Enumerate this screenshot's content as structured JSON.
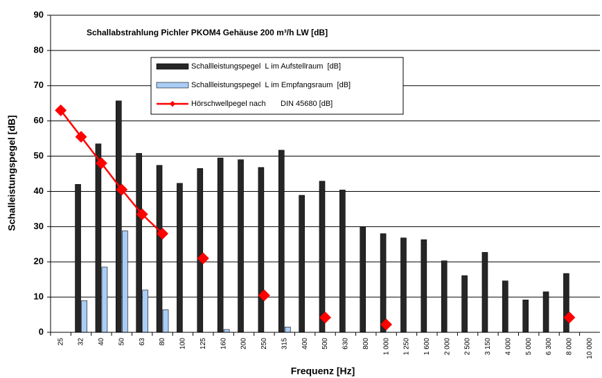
{
  "chart_data": {
    "type": "bar",
    "title": "Schallabstrahlung   Pichler PKOM4 Gehäuse 200 m³/h LW [dB]",
    "x_label": "Frequenz [Hz]",
    "y_label": "Schalleistungspegel [dB]",
    "categories": [
      "25",
      "32",
      "40",
      "50",
      "63",
      "80",
      "100",
      "125",
      "160",
      "200",
      "250",
      "315",
      "400",
      "500",
      "630",
      "800",
      "1 000",
      "1 250",
      "1 600",
      "2 000",
      "2 500",
      "3 150",
      "4 000",
      "5 000",
      "6 300",
      "8 000",
      "10 000"
    ],
    "series": [
      {
        "name": "Schallleistungspegel  L im Aufstellraum  [dB]",
        "kind": "bar",
        "color": "#262626",
        "values": [
          null,
          42,
          53.5,
          65.7,
          50.8,
          47.4,
          42.3,
          46.5,
          49.5,
          49,
          46.8,
          51.7,
          38.9,
          42.9,
          40.4,
          30,
          28,
          26.8,
          26.3,
          20.3,
          16.1,
          22.7,
          14.6,
          9.2,
          11.5,
          16.7,
          null
        ]
      },
      {
        "name": "Schallleistungspegel  L im Empfangsraum  [dB]",
        "kind": "bar",
        "color": "#a9cdf5",
        "values": [
          null,
          9,
          18.5,
          28.8,
          12,
          6.4,
          null,
          null,
          0.8,
          null,
          null,
          1.5,
          null,
          null,
          null,
          null,
          null,
          null,
          null,
          null,
          null,
          null,
          null,
          null,
          null,
          null,
          null
        ]
      },
      {
        "name": "Hörschwellpegel nach       DIN 45680 [dB]",
        "kind": "line",
        "color": "#ff0000",
        "values": [
          63,
          55.5,
          48,
          40.5,
          33.5,
          28,
          null,
          21,
          null,
          null,
          10.5,
          null,
          null,
          4.2,
          null,
          null,
          2.2,
          null,
          null,
          null,
          null,
          null,
          null,
          null,
          null,
          4.2,
          null
        ]
      }
    ],
    "ylim": [
      0,
      90
    ],
    "yticks": [
      0,
      10,
      20,
      30,
      40,
      50,
      60,
      70,
      80,
      90
    ],
    "grid": true
  }
}
